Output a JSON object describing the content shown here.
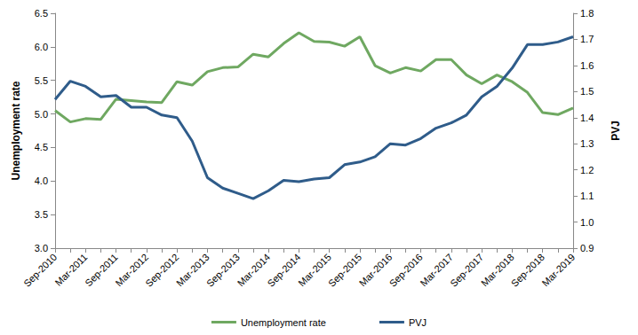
{
  "chart_data": {
    "type": "line",
    "categories": [
      "Sep-2010",
      null,
      "Mar-2011",
      null,
      "Sep-2011",
      null,
      "Mar-2012",
      null,
      "Sep-2012",
      null,
      "Mar-2013",
      null,
      "Sep-2013",
      null,
      "Mar-2014",
      null,
      "Sep-2014",
      null,
      "Mar-2015",
      null,
      "Sep-2015",
      null,
      "Mar-2016",
      null,
      "Sep-2016",
      null,
      "Mar-2017",
      null,
      "Sep-2017",
      null,
      "Mar-2018",
      null,
      "Sep-2018",
      null,
      "Mar-2019"
    ],
    "y_label": "Unemployment rate",
    "y2_label": "PVJ",
    "series": [
      {
        "name": "Unemployment rate",
        "color": "#6fa861",
        "values": [
          5.05,
          4.88,
          4.93,
          4.92,
          5.22,
          5.2,
          5.18,
          5.17,
          5.48,
          5.43,
          5.63,
          5.69,
          5.7,
          5.89,
          5.85,
          6.05,
          6.21,
          6.08,
          6.07,
          6.01,
          6.15,
          5.72,
          5.61,
          5.69,
          5.64,
          5.81,
          5.81,
          5.58,
          5.45,
          5.58,
          5.48,
          5.32,
          5.02,
          4.99,
          5.09
        ]
      },
      {
        "name": "PVJ",
        "color": "#2f5c8a",
        "axis": "y2",
        "values": [
          1.47,
          1.54,
          1.52,
          1.48,
          1.485,
          1.44,
          1.44,
          1.41,
          1.4,
          1.31,
          1.17,
          1.13,
          1.11,
          1.09,
          1.12,
          1.16,
          1.155,
          1.165,
          1.17,
          1.22,
          1.23,
          1.25,
          1.3,
          1.295,
          1.32,
          1.36,
          1.38,
          1.41,
          1.48,
          1.52,
          1.59,
          1.68,
          1.68,
          1.69,
          1.71
        ]
      }
    ],
    "ylim": [
      3.0,
      6.5
    ],
    "yticks": [
      {
        "value": 3.0,
        "label": "3.0"
      },
      3.5,
      {
        "value": 4.0,
        "label": "4.0"
      },
      4.5,
      {
        "value": 5.0,
        "label": "5.0"
      },
      5.5,
      {
        "value": 6.0,
        "label": "6.0"
      },
      6.5
    ],
    "y2lim": [
      0.9,
      1.8
    ],
    "y2ticks": [
      0.9,
      {
        "value": 1.0,
        "label": "1.0"
      },
      1.1,
      1.2,
      1.3,
      1.4,
      1.5,
      1.6,
      1.7,
      1.8
    ],
    "grid": false,
    "legend": "bottom"
  }
}
